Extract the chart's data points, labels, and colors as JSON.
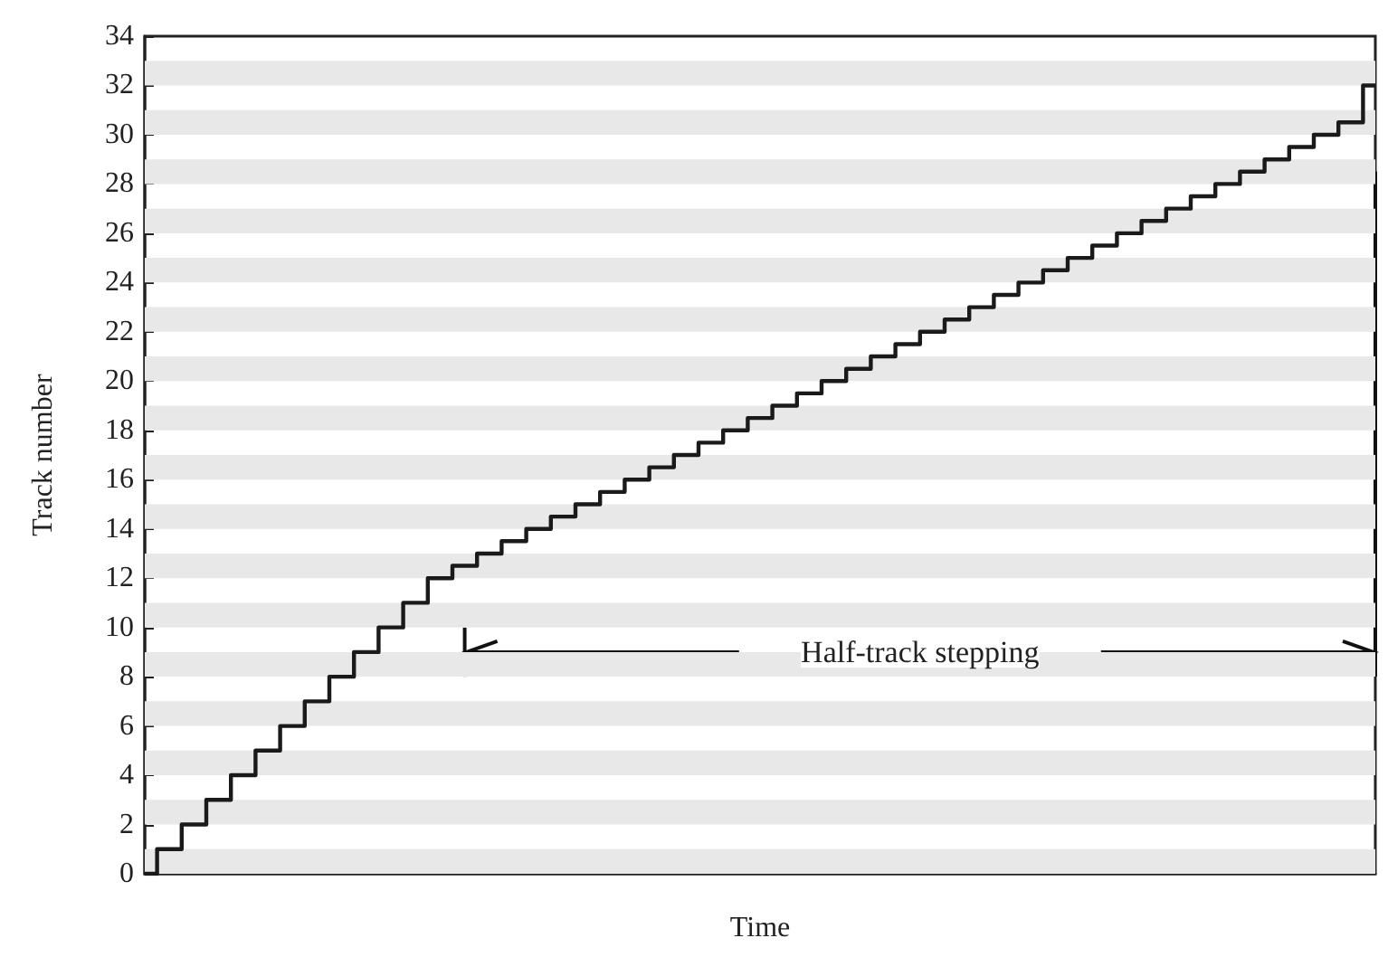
{
  "chart_data": {
    "type": "step",
    "xlabel": "Time",
    "ylabel": "Track number",
    "categories": [
      null,
      null,
      null,
      null,
      null,
      null,
      null,
      null,
      null,
      null,
      null,
      null,
      null,
      null,
      null,
      null,
      null,
      null,
      null,
      null,
      null,
      null,
      null,
      null,
      null,
      null,
      null,
      null,
      null,
      null,
      null,
      null,
      null,
      null,
      null,
      null,
      null,
      null,
      null,
      null,
      null,
      null,
      null,
      null,
      null,
      null,
      null,
      null,
      null,
      null,
      null
    ],
    "values": [
      0,
      1,
      2,
      3,
      4,
      5,
      6,
      7,
      8,
      9,
      10,
      11,
      12,
      12.5,
      13,
      13.5,
      14,
      14.5,
      15,
      15.5,
      16,
      16.5,
      17,
      17.5,
      18,
      18.5,
      19,
      19.5,
      20,
      20.5,
      21,
      21.5,
      22,
      22.5,
      23,
      23.5,
      24,
      24.5,
      25,
      25.5,
      26,
      26.5,
      27,
      27.5,
      28,
      28.5,
      29,
      29.5,
      30,
      30.5,
      32
    ],
    "color": "#1a1a1a",
    "ylim": [
      0,
      34
    ],
    "yticks": [
      0,
      2,
      4,
      6,
      8,
      10,
      12,
      14,
      16,
      18,
      20,
      22,
      24,
      26,
      28,
      30,
      32,
      34
    ],
    "bands": [
      {
        "axis": "y",
        "from": 0,
        "to": 1,
        "color": "#e8e8e8"
      },
      {
        "axis": "y",
        "from": 2,
        "to": 3,
        "color": "#e8e8e8"
      },
      {
        "axis": "y",
        "from": 4,
        "to": 5,
        "color": "#e8e8e8"
      },
      {
        "axis": "y",
        "from": 6,
        "to": 7,
        "color": "#e8e8e8"
      },
      {
        "axis": "y",
        "from": 8,
        "to": 9,
        "color": "#e8e8e8"
      },
      {
        "axis": "y",
        "from": 10,
        "to": 11,
        "color": "#e8e8e8"
      },
      {
        "axis": "y",
        "from": 12,
        "to": 13,
        "color": "#e8e8e8"
      },
      {
        "axis": "y",
        "from": 14,
        "to": 15,
        "color": "#e8e8e8"
      },
      {
        "axis": "y",
        "from": 16,
        "to": 17,
        "color": "#e8e8e8"
      },
      {
        "axis": "y",
        "from": 18,
        "to": 19,
        "color": "#e8e8e8"
      },
      {
        "axis": "y",
        "from": 20,
        "to": 21,
        "color": "#e8e8e8"
      },
      {
        "axis": "y",
        "from": 22,
        "to": 23,
        "color": "#e8e8e8"
      },
      {
        "axis": "y",
        "from": 24,
        "to": 25,
        "color": "#e8e8e8"
      },
      {
        "axis": "y",
        "from": 26,
        "to": 27,
        "color": "#e8e8e8"
      },
      {
        "axis": "y",
        "from": 28,
        "to": 29,
        "color": "#e8e8e8"
      },
      {
        "axis": "y",
        "from": 30,
        "to": 31,
        "color": "#e8e8e8"
      },
      {
        "axis": "y",
        "from": 32,
        "to": 33,
        "color": "#e8e8e8"
      }
    ],
    "marker": "none",
    "line_style": "solid",
    "annotations": [
      "Half-track stepping"
    ]
  }
}
